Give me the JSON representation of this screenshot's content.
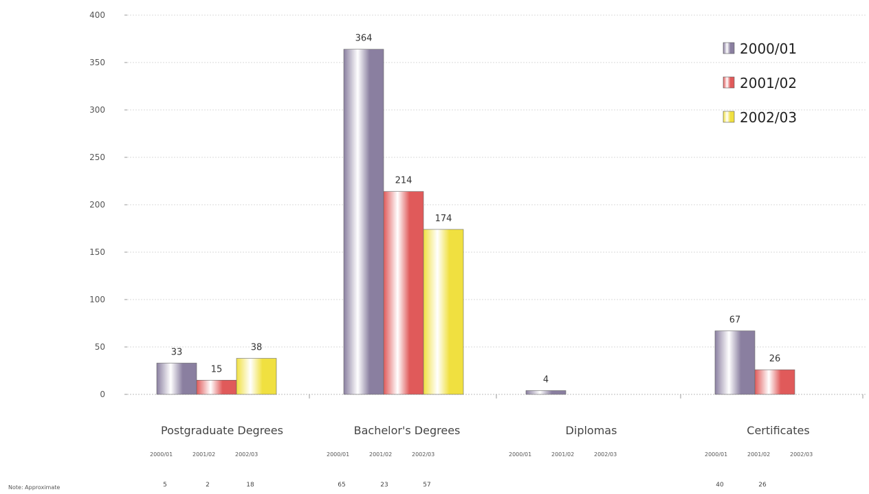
{
  "chart_data": {
    "type": "bar",
    "categories": [
      "Postgraduate Degrees",
      "Bachelor's Degrees",
      "Diplomas",
      "Certificates"
    ],
    "series": [
      {
        "name": "2000/01",
        "values": [
          33,
          364,
          4,
          67
        ],
        "color": "#8a7fa0"
      },
      {
        "name": "2001/02",
        "values": [
          15,
          214,
          null,
          26
        ],
        "color": "#e05a5a"
      },
      {
        "name": "2002/03",
        "values": [
          38,
          174,
          null,
          null
        ],
        "color": "#f0e040"
      }
    ],
    "value_labels": [
      [
        "33",
        "364",
        "4",
        "67"
      ],
      [
        "15",
        "214",
        "",
        "26"
      ],
      [
        "38",
        "174",
        "",
        ""
      ]
    ],
    "ylim": [
      0,
      400
    ],
    "yticks": [
      0,
      50,
      100,
      150,
      200,
      250,
      300,
      350,
      400
    ],
    "grid": true,
    "legend_position": "top-right",
    "sub_table": {
      "labels": [
        "2000/01",
        "2001/02",
        "2002/03"
      ],
      "rows": [
        [
          "5",
          "2",
          "18"
        ],
        [
          "65",
          "23",
          "57"
        ],
        [
          "",
          "",
          ""
        ],
        [
          "40",
          "26",
          ""
        ]
      ]
    },
    "source": "Note: Approximate"
  }
}
